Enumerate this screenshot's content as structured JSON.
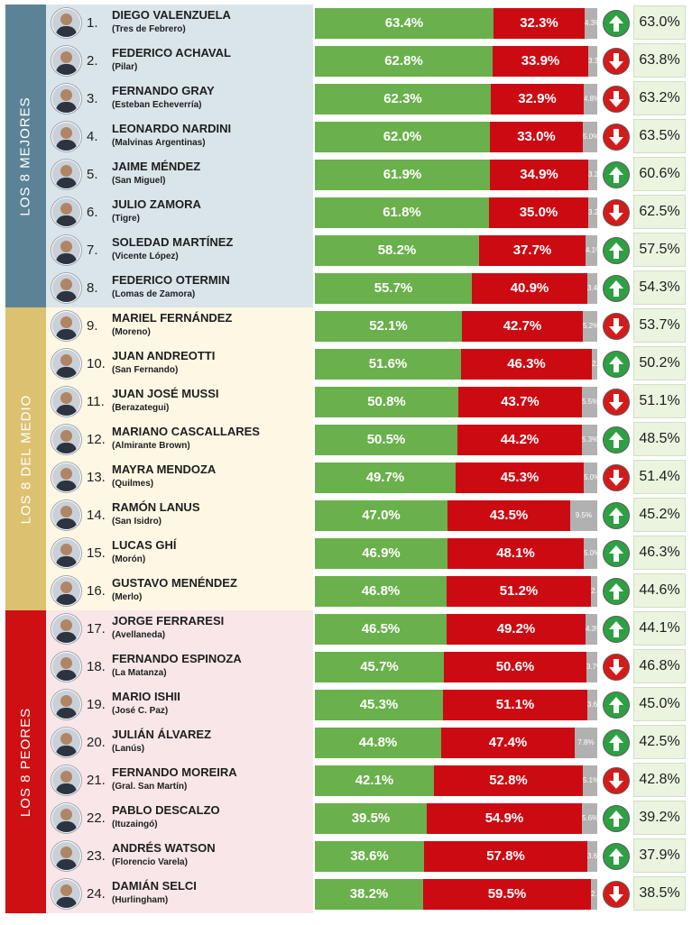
{
  "groups": [
    {
      "label": "LOS 8 MEJORES",
      "bar_color": "#5b8395",
      "bg_color": "#dae5ea"
    },
    {
      "label": "LOS 8 DEL MEDIO",
      "bar_color": "#dcc170",
      "bg_color": "#fdf7e4"
    },
    {
      "label": "LOS 8 PEORES",
      "bar_color": "#cf1013",
      "bg_color": "#f9e6e9"
    }
  ],
  "colors": {
    "positive": "#6ab04c",
    "negative": "#cc0a12",
    "neutral": "#b1b1b1",
    "up": "#2ea043",
    "down": "#d51a1a"
  },
  "chart_data": {
    "type": "bar",
    "stacked": true,
    "series": [
      {
        "key": "positive"
      },
      {
        "key": "negative"
      },
      {
        "key": "neutral"
      }
    ],
    "rows": [
      {
        "rank": "1.",
        "name": "DIEGO VALENZUELA",
        "district": "(Tres de Febrero)",
        "positive": "63.4%",
        "negative": "32.3%",
        "neutral": "4.3%",
        "trend": "up",
        "previous": "63.0%"
      },
      {
        "rank": "2.",
        "name": "FEDERICO ACHAVAL",
        "district": "(Pilar)",
        "positive": "62.8%",
        "negative": "33.9%",
        "neutral": "3.3%",
        "trend": "down",
        "previous": "63.8%"
      },
      {
        "rank": "3.",
        "name": "FERNANDO GRAY",
        "district": "(Esteban Echeverría)",
        "positive": "62.3%",
        "negative": "32.9%",
        "neutral": "4.8%",
        "trend": "down",
        "previous": "63.2%"
      },
      {
        "rank": "4.",
        "name": "LEONARDO NARDINI",
        "district": "(Malvinas Argentinas)",
        "positive": "62.0%",
        "negative": "33.0%",
        "neutral": "5.0%",
        "trend": "down",
        "previous": "63.5%"
      },
      {
        "rank": "5.",
        "name": "JAIME MÉNDEZ",
        "district": "(San Miguel)",
        "positive": "61.9%",
        "negative": "34.9%",
        "neutral": "3.2%",
        "trend": "up",
        "previous": "60.6%"
      },
      {
        "rank": "6.",
        "name": "JULIO ZAMORA",
        "district": "(Tigre)",
        "positive": "61.8%",
        "negative": "35.0%",
        "neutral": "3.2%",
        "trend": "down",
        "previous": "62.5%"
      },
      {
        "rank": "7.",
        "name": "SOLEDAD MARTÍNEZ",
        "district": "(Vicente López)",
        "positive": "58.2%",
        "negative": "37.7%",
        "neutral": "4.1%",
        "trend": "up",
        "previous": "57.5%"
      },
      {
        "rank": "8.",
        "name": "FEDERICO OTERMIN",
        "district": "(Lomas de Zamora)",
        "positive": "55.7%",
        "negative": "40.9%",
        "neutral": "3.4%",
        "trend": "up",
        "previous": "54.3%"
      },
      {
        "rank": "9.",
        "name": "MARIEL FERNÁNDEZ",
        "district": "(Moreno)",
        "positive": "52.1%",
        "negative": "42.7%",
        "neutral": "5.2%",
        "trend": "down",
        "previous": "53.7%"
      },
      {
        "rank": "10.",
        "name": "JUAN ANDREOTTI",
        "district": "(San Fernando)",
        "positive": "51.6%",
        "negative": "46.3%",
        "neutral": "2.1%",
        "trend": "up",
        "previous": "50.2%"
      },
      {
        "rank": "11.",
        "name": "JUAN JOSÉ MUSSI",
        "district": "(Berazategui)",
        "positive": "50.8%",
        "negative": "43.7%",
        "neutral": "5.5%",
        "trend": "down",
        "previous": "51.1%"
      },
      {
        "rank": "12.",
        "name": "MARIANO CASCALLARES",
        "district": "(Almirante Brown)",
        "positive": "50.5%",
        "negative": "44.2%",
        "neutral": "5.3%",
        "trend": "up",
        "previous": "48.5%"
      },
      {
        "rank": "13.",
        "name": "MAYRA MENDOZA",
        "district": "(Quilmes)",
        "positive": "49.7%",
        "negative": "45.3%",
        "neutral": "5.0%",
        "trend": "down",
        "previous": "51.4%"
      },
      {
        "rank": "14.",
        "name": "RAMÓN LANUS",
        "district": "(San Isidro)",
        "positive": "47.0%",
        "negative": "43.5%",
        "neutral": "9.5%",
        "trend": "up",
        "previous": "45.2%"
      },
      {
        "rank": "15.",
        "name": "LUCAS GHÍ",
        "district": "(Morón)",
        "positive": "46.9%",
        "negative": "48.1%",
        "neutral": "5.0%",
        "trend": "up",
        "previous": "46.3%"
      },
      {
        "rank": "16.",
        "name": "GUSTAVO MENÉNDEZ",
        "district": "(Merlo)",
        "positive": "46.8%",
        "negative": "51.2%",
        "neutral": "2.0%",
        "trend": "up",
        "previous": "44.6%"
      },
      {
        "rank": "17.",
        "name": "JORGE FERRARESI",
        "district": "(Avellaneda)",
        "positive": "46.5%",
        "negative": "49.2%",
        "neutral": "4.3%",
        "trend": "up",
        "previous": "44.1%"
      },
      {
        "rank": "18.",
        "name": "FERNANDO ESPINOZA",
        "district": "(La Matanza)",
        "positive": "45.7%",
        "negative": "50.6%",
        "neutral": "3.7%",
        "trend": "down",
        "previous": "46.8%"
      },
      {
        "rank": "19.",
        "name": "MARIO ISHII",
        "district": "(José C. Paz)",
        "positive": "45.3%",
        "negative": "51.1%",
        "neutral": "3.6%",
        "trend": "up",
        "previous": "45.0%"
      },
      {
        "rank": "20.",
        "name": "JULIÁN ÁLVAREZ",
        "district": "(Lanús)",
        "positive": "44.8%",
        "negative": "47.4%",
        "neutral": "7.8%",
        "trend": "up",
        "previous": "42.5%"
      },
      {
        "rank": "21.",
        "name": "FERNANDO MOREIRA",
        "district": "(Gral. San Martín)",
        "positive": "42.1%",
        "negative": "52.8%",
        "neutral": "5.1%",
        "trend": "down",
        "previous": "42.8%"
      },
      {
        "rank": "22.",
        "name": "PABLO DESCALZO",
        "district": "(Ituzaingó)",
        "positive": "39.5%",
        "negative": "54.9%",
        "neutral": "5.6%",
        "trend": "up",
        "previous": "39.2%"
      },
      {
        "rank": "23.",
        "name": "ANDRÉS WATSON",
        "district": "(Florencio Varela)",
        "positive": "38.6%",
        "negative": "57.8%",
        "neutral": "3.6%",
        "trend": "up",
        "previous": "37.9%"
      },
      {
        "rank": "24.",
        "name": "DAMIÁN SELCI",
        "district": "(Hurlingham)",
        "positive": "38.2%",
        "negative": "59.5%",
        "neutral": "2.3%",
        "trend": "down",
        "previous": "38.5%"
      }
    ]
  }
}
